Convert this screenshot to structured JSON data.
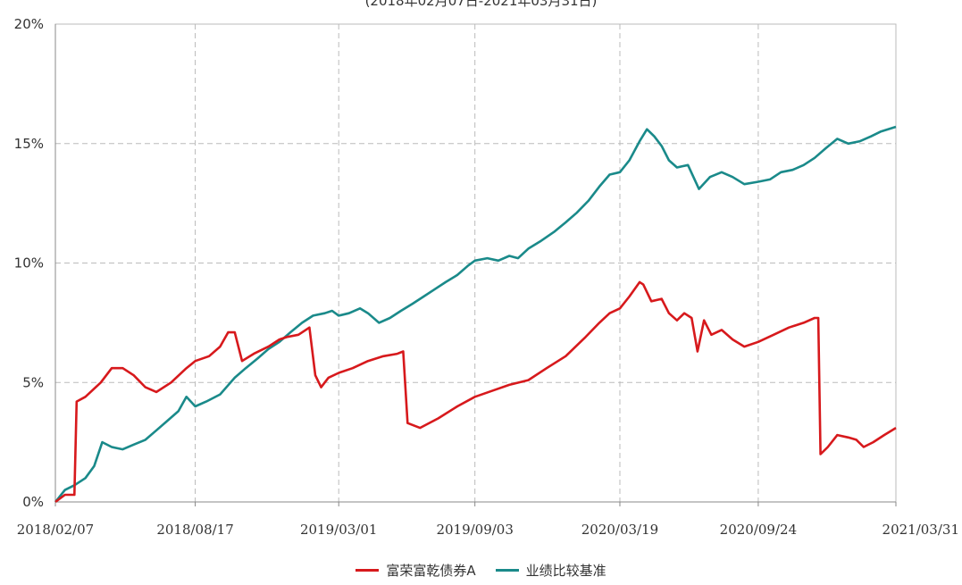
{
  "subtitle": "(2018年02月07日-2021年03月31日)",
  "chart_data": {
    "type": "line",
    "title": "",
    "subtitle": "(2018年02月07日-2021年03月31日)",
    "xlabel": "",
    "ylabel": "",
    "ylim": [
      0,
      20
    ],
    "yticks": [
      "0%",
      "5%",
      "10%",
      "15%",
      "20%"
    ],
    "xticks": [
      "2018/02/07",
      "2018/08/17",
      "2019/03/01",
      "2019/09/03",
      "2020/03/19",
      "2020/09/24",
      "2021/03/31"
    ],
    "grid": true,
    "legend_position": "bottom",
    "series": [
      {
        "name": "富荣富乾债券A",
        "color": "#d7191c",
        "points": [
          [
            "2018/02/07",
            0.0
          ],
          [
            "2018/02/20",
            0.3
          ],
          [
            "2018/03/05",
            0.3
          ],
          [
            "2018/03/08",
            4.2
          ],
          [
            "2018/03/20",
            4.4
          ],
          [
            "2018/04/10",
            5.0
          ],
          [
            "2018/04/25",
            5.6
          ],
          [
            "2018/05/10",
            5.6
          ],
          [
            "2018/05/25",
            5.3
          ],
          [
            "2018/06/10",
            4.8
          ],
          [
            "2018/06/25",
            4.6
          ],
          [
            "2018/07/15",
            5.0
          ],
          [
            "2018/08/05",
            5.6
          ],
          [
            "2018/08/17",
            5.9
          ],
          [
            "2018/09/05",
            6.1
          ],
          [
            "2018/09/20",
            6.5
          ],
          [
            "2018/10/01",
            7.1
          ],
          [
            "2018/10/10",
            7.1
          ],
          [
            "2018/10/20",
            5.9
          ],
          [
            "2018/11/05",
            6.2
          ],
          [
            "2018/11/25",
            6.5
          ],
          [
            "2018/12/10",
            6.8
          ],
          [
            "2018/12/20",
            6.9
          ],
          [
            "2019/01/05",
            7.0
          ],
          [
            "2019/01/15",
            7.2
          ],
          [
            "2019/01/20",
            7.3
          ],
          [
            "2019/01/28",
            5.3
          ],
          [
            "2019/02/05",
            4.8
          ],
          [
            "2019/02/15",
            5.2
          ],
          [
            "2019/03/01",
            5.4
          ],
          [
            "2019/03/20",
            5.6
          ],
          [
            "2019/04/10",
            5.9
          ],
          [
            "2019/05/01",
            6.1
          ],
          [
            "2019/05/20",
            6.2
          ],
          [
            "2019/05/28",
            6.3
          ],
          [
            "2019/06/03",
            3.3
          ],
          [
            "2019/06/20",
            3.1
          ],
          [
            "2019/07/15",
            3.5
          ],
          [
            "2019/08/10",
            4.0
          ],
          [
            "2019/09/03",
            4.4
          ],
          [
            "2019/10/01",
            4.7
          ],
          [
            "2019/10/20",
            4.9
          ],
          [
            "2019/11/15",
            5.1
          ],
          [
            "2019/12/10",
            5.6
          ],
          [
            "2020/01/05",
            6.1
          ],
          [
            "2020/02/01",
            6.9
          ],
          [
            "2020/02/20",
            7.5
          ],
          [
            "2020/03/05",
            7.9
          ],
          [
            "2020/03/19",
            8.1
          ],
          [
            "2020/04/01",
            8.6
          ],
          [
            "2020/04/15",
            9.2
          ],
          [
            "2020/04/20",
            9.1
          ],
          [
            "2020/05/01",
            8.4
          ],
          [
            "2020/05/15",
            8.5
          ],
          [
            "2020/05/25",
            7.9
          ],
          [
            "2020/06/05",
            7.6
          ],
          [
            "2020/06/15",
            7.9
          ],
          [
            "2020/06/25",
            7.7
          ],
          [
            "2020/07/03",
            6.3
          ],
          [
            "2020/07/12",
            7.6
          ],
          [
            "2020/07/22",
            7.0
          ],
          [
            "2020/08/05",
            7.2
          ],
          [
            "2020/08/20",
            6.8
          ],
          [
            "2020/09/05",
            6.5
          ],
          [
            "2020/09/24",
            6.7
          ],
          [
            "2020/10/15",
            7.0
          ],
          [
            "2020/11/05",
            7.3
          ],
          [
            "2020/11/25",
            7.5
          ],
          [
            "2020/12/10",
            7.7
          ],
          [
            "2020/12/15",
            7.7
          ],
          [
            "2020/12/18",
            2.0
          ],
          [
            "2020/12/28",
            2.3
          ],
          [
            "2021/01/10",
            2.8
          ],
          [
            "2021/01/25",
            2.7
          ],
          [
            "2021/02/05",
            2.6
          ],
          [
            "2021/02/15",
            2.3
          ],
          [
            "2021/02/28",
            2.5
          ],
          [
            "2021/03/15",
            2.8
          ],
          [
            "2021/03/31",
            3.1
          ]
        ]
      },
      {
        "name": "业绩比较基准",
        "color": "#1a8a8a",
        "points": [
          [
            "2018/02/07",
            0.0
          ],
          [
            "2018/02/20",
            0.5
          ],
          [
            "2018/03/05",
            0.7
          ],
          [
            "2018/03/20",
            1.0
          ],
          [
            "2018/04/01",
            1.5
          ],
          [
            "2018/04/12",
            2.5
          ],
          [
            "2018/04/25",
            2.3
          ],
          [
            "2018/05/10",
            2.2
          ],
          [
            "2018/05/25",
            2.4
          ],
          [
            "2018/06/10",
            2.6
          ],
          [
            "2018/06/25",
            3.0
          ],
          [
            "2018/07/10",
            3.4
          ],
          [
            "2018/07/25",
            3.8
          ],
          [
            "2018/08/05",
            4.4
          ],
          [
            "2018/08/17",
            4.0
          ],
          [
            "2018/09/01",
            4.2
          ],
          [
            "2018/09/20",
            4.5
          ],
          [
            "2018/10/10",
            5.2
          ],
          [
            "2018/10/25",
            5.6
          ],
          [
            "2018/11/10",
            6.0
          ],
          [
            "2018/11/25",
            6.4
          ],
          [
            "2018/12/10",
            6.7
          ],
          [
            "2018/12/25",
            7.1
          ],
          [
            "2019/01/10",
            7.5
          ],
          [
            "2019/01/25",
            7.8
          ],
          [
            "2019/02/10",
            7.9
          ],
          [
            "2019/02/20",
            8.0
          ],
          [
            "2019/03/01",
            7.8
          ],
          [
            "2019/03/15",
            7.9
          ],
          [
            "2019/03/30",
            8.1
          ],
          [
            "2019/04/10",
            7.9
          ],
          [
            "2019/04/25",
            7.5
          ],
          [
            "2019/05/10",
            7.7
          ],
          [
            "2019/05/25",
            8.0
          ],
          [
            "2019/06/10",
            8.3
          ],
          [
            "2019/06/25",
            8.6
          ],
          [
            "2019/07/10",
            8.9
          ],
          [
            "2019/07/25",
            9.2
          ],
          [
            "2019/08/10",
            9.5
          ],
          [
            "2019/08/25",
            9.9
          ],
          [
            "2019/09/03",
            10.1
          ],
          [
            "2019/09/20",
            10.2
          ],
          [
            "2019/10/05",
            10.1
          ],
          [
            "2019/10/20",
            10.3
          ],
          [
            "2019/11/01",
            10.2
          ],
          [
            "2019/11/15",
            10.6
          ],
          [
            "2019/12/01",
            10.9
          ],
          [
            "2019/12/20",
            11.3
          ],
          [
            "2020/01/05",
            11.7
          ],
          [
            "2020/01/20",
            12.1
          ],
          [
            "2020/02/05",
            12.6
          ],
          [
            "2020/02/20",
            13.2
          ],
          [
            "2020/03/05",
            13.7
          ],
          [
            "2020/03/19",
            13.8
          ],
          [
            "2020/04/01",
            14.3
          ],
          [
            "2020/04/15",
            15.1
          ],
          [
            "2020/04/25",
            15.6
          ],
          [
            "2020/05/05",
            15.3
          ],
          [
            "2020/05/15",
            14.9
          ],
          [
            "2020/05/25",
            14.3
          ],
          [
            "2020/06/05",
            14.0
          ],
          [
            "2020/06/20",
            14.1
          ],
          [
            "2020/07/05",
            13.1
          ],
          [
            "2020/07/20",
            13.6
          ],
          [
            "2020/08/05",
            13.8
          ],
          [
            "2020/08/20",
            13.6
          ],
          [
            "2020/09/05",
            13.3
          ],
          [
            "2020/09/24",
            13.4
          ],
          [
            "2020/10/10",
            13.5
          ],
          [
            "2020/10/25",
            13.8
          ],
          [
            "2020/11/10",
            13.9
          ],
          [
            "2020/11/25",
            14.1
          ],
          [
            "2020/12/10",
            14.4
          ],
          [
            "2020/12/25",
            14.8
          ],
          [
            "2021/01/10",
            15.2
          ],
          [
            "2021/01/25",
            15.0
          ],
          [
            "2021/02/10",
            15.1
          ],
          [
            "2021/02/25",
            15.3
          ],
          [
            "2021/03/10",
            15.5
          ],
          [
            "2021/03/31",
            15.7
          ]
        ]
      }
    ]
  }
}
